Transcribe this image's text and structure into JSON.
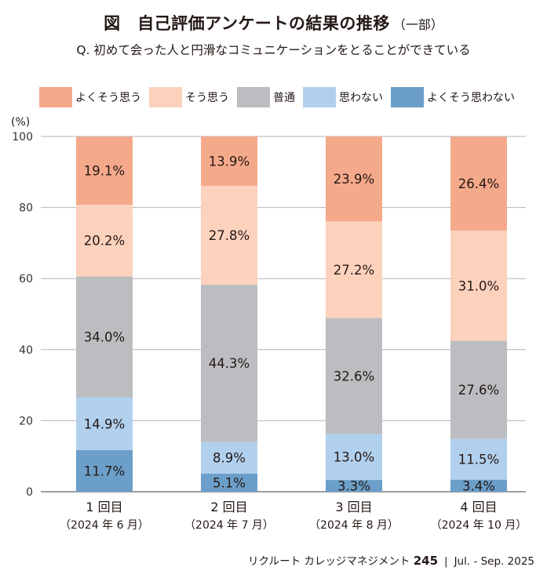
{
  "title": {
    "main": "図　自己評価アンケートの結果の推移",
    "sub": "（一部）"
  },
  "question": "Q. 初めて会った人と円滑なコミュニケーションをとることができている",
  "unit_label": "(%)",
  "footer": {
    "publication": "リクルート カレッジマネジメント",
    "issue": "245",
    "separator": "|",
    "period": "Jul. - Sep. 2025"
  },
  "chart_data": {
    "type": "bar",
    "stacked": true,
    "categories": [
      "1 回目",
      "2 回目",
      "3 回目",
      "4 回目"
    ],
    "category_sublabels": [
      "（2024 年 6 月）",
      "（2024 年 7 月）",
      "（2024 年 8 月）",
      "（2024 年 10 月）"
    ],
    "ylim": [
      0,
      100
    ],
    "yticks": [
      0,
      20,
      40,
      60,
      80,
      100
    ],
    "grid": true,
    "legend_position": "top",
    "series": [
      {
        "name": "よくそう思わない",
        "color": "#6b9fca",
        "values": [
          11.7,
          5.1,
          3.3,
          3.4
        ],
        "labels": [
          "11.7%",
          "5.1%",
          "3.3%",
          "3.4%"
        ]
      },
      {
        "name": "思わない",
        "color": "#b1d0ee",
        "values": [
          14.9,
          8.9,
          13.0,
          11.5
        ],
        "labels": [
          "14.9%",
          "8.9%",
          "13.0%",
          "11.5%"
        ]
      },
      {
        "name": "普通",
        "color": "#bcbdc0",
        "values": [
          34.0,
          44.3,
          32.6,
          27.6
        ],
        "labels": [
          "34.0%",
          "44.3%",
          "32.6%",
          "27.6%"
        ]
      },
      {
        "name": "そう思う",
        "color": "#fdd2bd",
        "values": [
          20.2,
          27.8,
          27.2,
          31.0
        ],
        "labels": [
          "20.2%",
          "27.8%",
          "27.2%",
          "31.0%"
        ]
      },
      {
        "name": "よくそう思う",
        "color": "#f5a98b",
        "values": [
          19.1,
          13.9,
          23.9,
          26.4
        ],
        "labels": [
          "19.1%",
          "13.9%",
          "23.9%",
          "26.4%"
        ]
      }
    ],
    "legend_order": [
      "よくそう思う",
      "そう思う",
      "普通",
      "思わない",
      "よくそう思わない"
    ]
  }
}
